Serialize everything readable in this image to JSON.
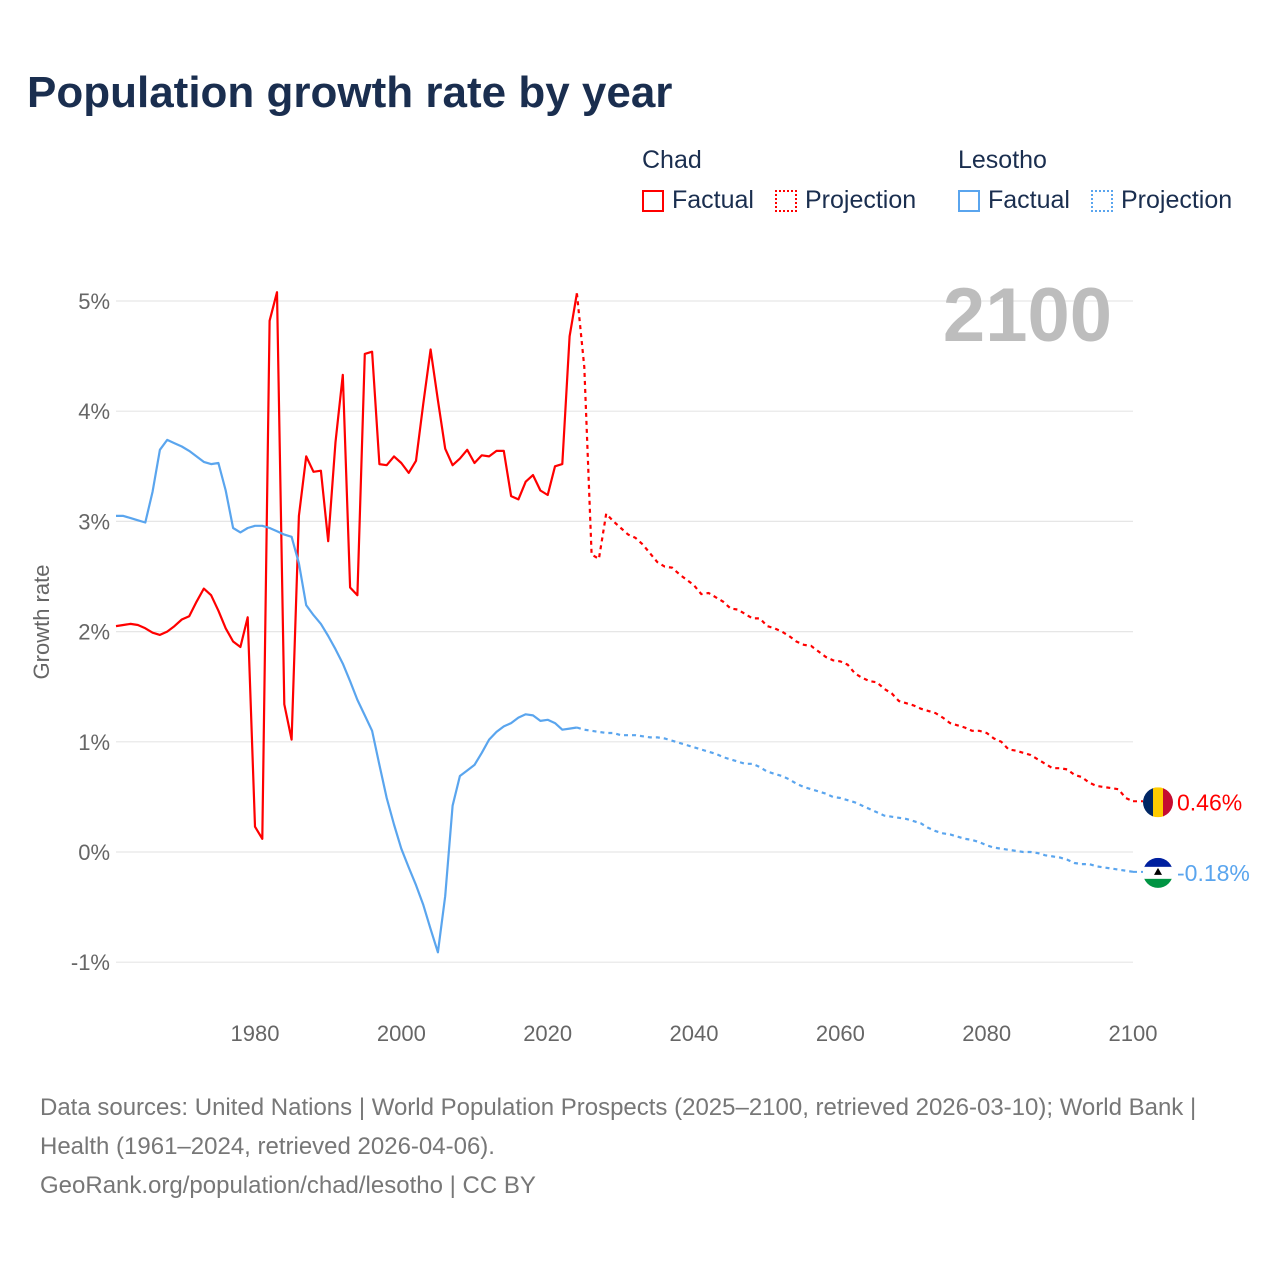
{
  "title": "Population growth rate by year",
  "legend": {
    "groups": [
      {
        "name": "Chad",
        "color": "#ff0000",
        "factual_label": "Factual",
        "projection_label": "Projection"
      },
      {
        "name": "Lesotho",
        "color": "#5aa5ee",
        "factual_label": "Factual",
        "projection_label": "Projection"
      }
    ]
  },
  "current_year_label": "2100",
  "footer": {
    "sources": "Data sources: United Nations | World Population Prospects (2025–2100, retrieved 2026-03-10); World Bank | Health (1961–2024, retrieved 2026-04-06).",
    "credit": "GeoRank.org/population/chad/lesotho | CC BY"
  },
  "chart_data": {
    "type": "line",
    "title": "Population growth rate by year",
    "xlabel": "",
    "ylabel": "Growth rate",
    "xlim": [
      1961,
      2100
    ],
    "ylim": [
      -1.2,
      5.1
    ],
    "x_ticks": [
      1980,
      2000,
      2020,
      2040,
      2060,
      2080,
      2100
    ],
    "y_ticks": [
      -1,
      0,
      1,
      2,
      3,
      4,
      5
    ],
    "y_tick_labels": [
      "-1%",
      "0%",
      "1%",
      "2%",
      "3%",
      "4%",
      "5%"
    ],
    "grid": true,
    "series": [
      {
        "name": "Chad",
        "color": "#ff0000",
        "end_label": "0.46%",
        "factual_start": 1961,
        "factual": [
          2.05,
          2.06,
          2.07,
          2.06,
          2.03,
          1.99,
          1.97,
          2.0,
          2.05,
          2.11,
          2.14,
          2.27,
          2.39,
          2.33,
          2.19,
          2.03,
          1.91,
          1.86,
          2.13,
          0.23,
          0.12,
          4.82,
          5.08,
          1.34,
          1.02,
          3.05,
          3.59,
          3.45,
          3.46,
          2.82,
          3.72,
          4.33,
          2.4,
          2.33,
          4.52,
          4.54,
          3.52,
          3.51,
          3.59,
          3.53,
          3.44,
          3.55,
          4.07,
          4.56,
          4.1,
          3.66,
          3.51,
          3.57,
          3.65,
          3.53,
          3.6,
          3.59,
          3.64,
          3.64,
          3.23,
          3.2,
          3.36,
          3.42,
          3.28,
          3.24,
          3.5,
          3.52,
          4.68,
          5.07
        ],
        "projection_start": 2025,
        "projection": [
          4.4,
          2.7,
          2.66,
          3.07,
          3.0,
          2.94,
          2.88,
          2.85,
          2.79,
          2.71,
          2.63,
          2.59,
          2.58,
          2.52,
          2.47,
          2.42,
          2.34,
          2.35,
          2.31,
          2.27,
          2.21,
          2.2,
          2.16,
          2.12,
          2.12,
          2.05,
          2.03,
          2.0,
          1.96,
          1.91,
          1.88,
          1.87,
          1.82,
          1.77,
          1.74,
          1.73,
          1.7,
          1.62,
          1.58,
          1.55,
          1.54,
          1.48,
          1.44,
          1.37,
          1.35,
          1.33,
          1.3,
          1.28,
          1.26,
          1.22,
          1.17,
          1.15,
          1.13,
          1.1,
          1.1,
          1.08,
          1.03,
          1.0,
          0.93,
          0.92,
          0.9,
          0.88,
          0.84,
          0.8,
          0.76,
          0.76,
          0.75,
          0.7,
          0.68,
          0.63,
          0.6,
          0.59,
          0.58,
          0.57,
          0.49,
          0.46
        ]
      },
      {
        "name": "Lesotho",
        "color": "#5aa5ee",
        "end_label": "-0.18%",
        "factual_start": 1961,
        "factual": [
          3.05,
          3.05,
          3.03,
          3.01,
          2.99,
          3.27,
          3.65,
          3.74,
          3.71,
          3.68,
          3.64,
          3.59,
          3.54,
          3.52,
          3.53,
          3.28,
          2.94,
          2.9,
          2.94,
          2.96,
          2.96,
          2.94,
          2.91,
          2.88,
          2.86,
          2.62,
          2.24,
          2.15,
          2.07,
          1.96,
          1.84,
          1.71,
          1.55,
          1.38,
          1.24,
          1.1,
          0.79,
          0.49,
          0.25,
          0.03,
          -0.14,
          -0.3,
          -0.48,
          -0.7,
          -0.91,
          -0.4,
          0.42,
          0.69,
          0.74,
          0.79,
          0.9,
          1.02,
          1.09,
          1.14,
          1.17,
          1.22,
          1.25,
          1.24,
          1.19,
          1.2,
          1.17,
          1.11,
          1.12,
          1.13
        ],
        "projection_start": 2025,
        "projection": [
          1.11,
          1.1,
          1.09,
          1.08,
          1.08,
          1.06,
          1.06,
          1.06,
          1.05,
          1.04,
          1.04,
          1.03,
          1.01,
          0.99,
          0.97,
          0.95,
          0.93,
          0.91,
          0.89,
          0.86,
          0.84,
          0.82,
          0.8,
          0.8,
          0.77,
          0.73,
          0.71,
          0.69,
          0.66,
          0.62,
          0.59,
          0.57,
          0.55,
          0.53,
          0.5,
          0.49,
          0.47,
          0.45,
          0.42,
          0.39,
          0.36,
          0.33,
          0.32,
          0.31,
          0.3,
          0.28,
          0.26,
          0.22,
          0.19,
          0.17,
          0.16,
          0.14,
          0.12,
          0.11,
          0.09,
          0.06,
          0.04,
          0.03,
          0.02,
          0.01,
          0.0,
          0.0,
          -0.01,
          -0.03,
          -0.04,
          -0.05,
          -0.07,
          -0.1,
          -0.11,
          -0.11,
          -0.13,
          -0.14,
          -0.15,
          -0.16,
          -0.17,
          -0.18
        ]
      }
    ]
  }
}
